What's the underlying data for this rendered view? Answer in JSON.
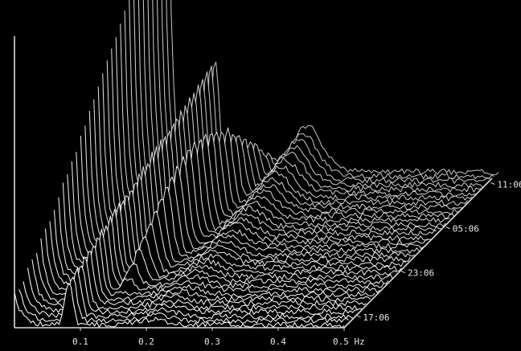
{
  "chart_data": {
    "type": "waterfall",
    "title": "",
    "xlabel": "",
    "ylabel": "",
    "zlabel": "",
    "x_ticks": [
      "0.1",
      "0.2",
      "0.3",
      "0.4",
      "0.5 Hz"
    ],
    "x_range": [
      0.0,
      0.5
    ],
    "x_unit": "Hz",
    "time_ticks": [
      "17:06",
      "23:06",
      "05:06",
      "11:06"
    ],
    "colors": {
      "background": "#000000",
      "lines": "#ffffff",
      "axes": "#dcdcdc"
    },
    "grid": false,
    "legend": "none",
    "trace_count": 36,
    "ridges": [
      {
        "freq": 0.012,
        "amplitude": 1.0,
        "note": "low-frequency tail, strongest in earliest spectra"
      },
      {
        "freq": 0.075,
        "amplitude": 0.55,
        "note": "swell peak near 0.07-0.08 Hz"
      },
      {
        "freq": 0.13,
        "amplitude": 0.5,
        "note": "peak migrating from ~0.16 to ~0.11 Hz"
      },
      {
        "freq": 0.21,
        "amplitude": 0.22,
        "note": "broad wind-sea hump in later spectra"
      }
    ]
  }
}
